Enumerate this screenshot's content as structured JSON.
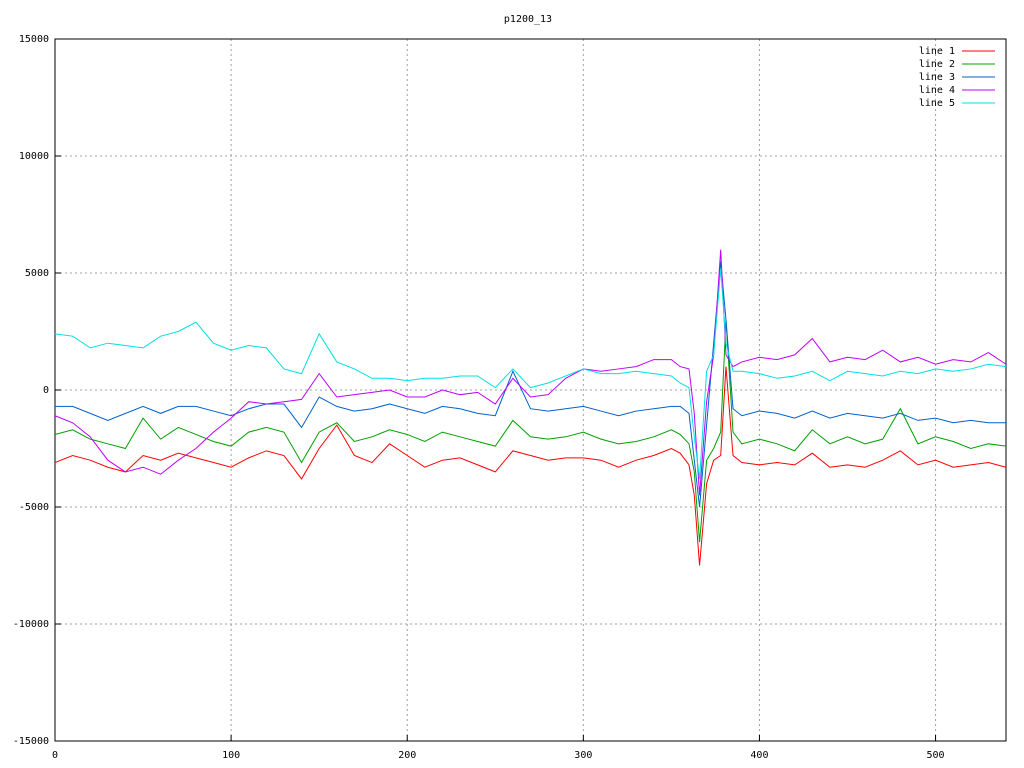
{
  "chart_data": {
    "type": "line",
    "title": "p1200_13",
    "x": [
      0,
      10,
      20,
      30,
      40,
      50,
      60,
      70,
      80,
      90,
      100,
      110,
      120,
      130,
      140,
      150,
      160,
      170,
      180,
      190,
      200,
      210,
      220,
      230,
      240,
      250,
      260,
      270,
      280,
      290,
      300,
      310,
      320,
      330,
      340,
      350,
      355,
      360,
      363,
      366,
      370,
      374,
      378,
      381,
      385,
      390,
      400,
      410,
      420,
      430,
      440,
      450,
      460,
      470,
      480,
      490,
      500,
      510,
      520,
      530,
      540
    ],
    "series": [
      {
        "name": "line 1",
        "color": "#ff0000",
        "values": [
          -3100,
          -2800,
          -3000,
          -3300,
          -3500,
          -2800,
          -3000,
          -2700,
          -2900,
          -3100,
          -3300,
          -2900,
          -2600,
          -2800,
          -3800,
          -2500,
          -1500,
          -2800,
          -3100,
          -2300,
          -2800,
          -3300,
          -3000,
          -2900,
          -3200,
          -3500,
          -2600,
          -2800,
          -3000,
          -2900,
          -2900,
          -3000,
          -3300,
          -3000,
          -2800,
          -2500,
          -2700,
          -3200,
          -4500,
          -7500,
          -4000,
          -3000,
          -2800,
          1000,
          -2800,
          -3100,
          -3200,
          -3100,
          -3200,
          -2700,
          -3300,
          -3200,
          -3300,
          -3000,
          -2600,
          -3200,
          -3000,
          -3300,
          -3200,
          -3100,
          -3300
        ]
      },
      {
        "name": "line 2",
        "color": "#00a000",
        "values": [
          -1900,
          -1700,
          -2100,
          -2300,
          -2500,
          -1200,
          -2100,
          -1600,
          -1900,
          -2200,
          -2400,
          -1800,
          -1600,
          -1800,
          -3100,
          -1800,
          -1400,
          -2200,
          -2000,
          -1700,
          -1900,
          -2200,
          -1800,
          -2000,
          -2200,
          -2400,
          -1300,
          -2000,
          -2100,
          -2000,
          -1800,
          -2100,
          -2300,
          -2200,
          -2000,
          -1700,
          -1900,
          -2300,
          -3500,
          -6500,
          -3000,
          -2500,
          -1800,
          3000,
          -1800,
          -2300,
          -2100,
          -2300,
          -2600,
          -1700,
          -2300,
          -2000,
          -2300,
          -2100,
          -800,
          -2300,
          -2000,
          -2200,
          -2500,
          -2300,
          -2400
        ]
      },
      {
        "name": "line 3",
        "color": "#0060d0",
        "values": [
          -700,
          -700,
          -1000,
          -1300,
          -1000,
          -700,
          -1000,
          -700,
          -700,
          -900,
          -1100,
          -800,
          -600,
          -600,
          -1600,
          -300,
          -700,
          -900,
          -800,
          -600,
          -800,
          -1000,
          -700,
          -800,
          -1000,
          -1100,
          800,
          -800,
          -900,
          -800,
          -700,
          -900,
          -1100,
          -900,
          -800,
          -700,
          -700,
          -1000,
          -3000,
          -5000,
          -1500,
          2000,
          5500,
          3000,
          -800,
          -1100,
          -900,
          -1000,
          -1200,
          -900,
          -1200,
          -1000,
          -1100,
          -1200,
          -1000,
          -1300,
          -1200,
          -1400,
          -1300,
          -1400,
          -1400
        ]
      },
      {
        "name": "line 4",
        "color": "#c000ff",
        "values": [
          -1100,
          -1400,
          -2000,
          -3000,
          -3500,
          -3300,
          -3600,
          -3000,
          -2500,
          -1800,
          -1200,
          -500,
          -600,
          -500,
          -400,
          700,
          -300,
          -200,
          -100,
          0,
          -300,
          -300,
          0,
          -200,
          -100,
          -600,
          500,
          -300,
          -200,
          500,
          900,
          800,
          900,
          1000,
          1300,
          1300,
          1000,
          900,
          -1000,
          -4500,
          -500,
          1500,
          6000,
          1500,
          1000,
          1200,
          1400,
          1300,
          1500,
          2200,
          1200,
          1400,
          1300,
          1700,
          1200,
          1400,
          1100,
          1300,
          1200,
          1600,
          1100
        ]
      },
      {
        "name": "line 5",
        "color": "#00e0e0",
        "values": [
          2400,
          2300,
          1800,
          2000,
          1900,
          1800,
          2300,
          2500,
          2900,
          2000,
          1700,
          1900,
          1800,
          900,
          700,
          2400,
          1200,
          900,
          500,
          500,
          400,
          500,
          500,
          600,
          600,
          100,
          900,
          100,
          300,
          600,
          900,
          700,
          700,
          800,
          700,
          600,
          300,
          100,
          -2000,
          -3800,
          800,
          1500,
          5200,
          2000,
          800,
          800,
          700,
          500,
          600,
          800,
          400,
          800,
          700,
          600,
          800,
          700,
          900,
          800,
          900,
          1100,
          1000
        ]
      }
    ],
    "xlim": [
      0,
      540
    ],
    "xticks": [
      0,
      100,
      200,
      300,
      400,
      500
    ],
    "ylim": [
      -15000,
      15000
    ],
    "yticks": [
      -15000,
      -10000,
      -5000,
      0,
      5000,
      10000,
      15000
    ],
    "grid": true,
    "legend": "top-right"
  }
}
